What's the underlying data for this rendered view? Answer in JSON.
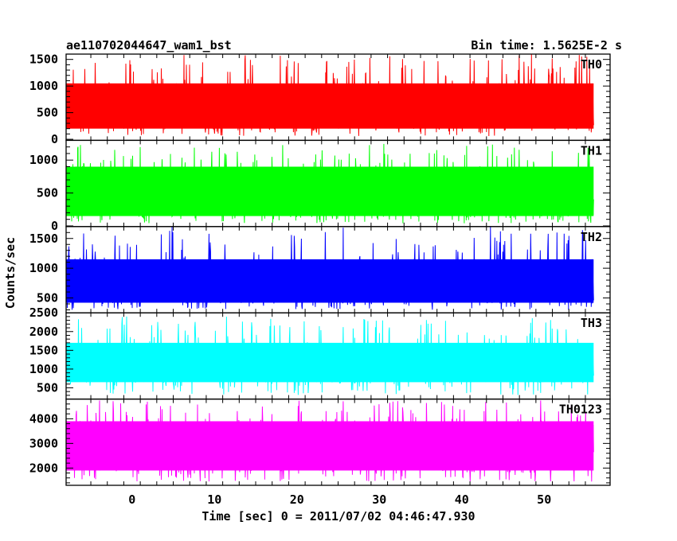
{
  "header": {
    "left_title": "ae110702044647_wam1_bst",
    "right_title": "Bin time: 1.5625E-2 s"
  },
  "chart_data": {
    "type": "line",
    "title": "ae110702044647_wam1_bst",
    "subtitle": "Bin time: 1.5625E-2 s",
    "xlabel": "Time [sec] 0 = 2011/07/02 04:46:47.930",
    "ylabel": "Counts/sec",
    "xlim": [
      -8,
      58
    ],
    "x_ticks": [
      0,
      10,
      20,
      30,
      40,
      50
    ],
    "x_data_range": [
      -8,
      56
    ],
    "grid": false,
    "legend": "panel labels top-right",
    "panels": [
      {
        "name": "TH0",
        "color": "#ff0000",
        "ylim": [
          -20,
          1600
        ],
        "y_ticks": [
          0,
          500,
          1000,
          1500
        ],
        "base": 60,
        "low": 200,
        "high": 1050,
        "peak": 1600
      },
      {
        "name": "TH1",
        "color": "#00ff00",
        "ylim": [
          -10,
          1300
        ],
        "y_ticks": [
          0,
          500,
          1000
        ],
        "base": 40,
        "low": 150,
        "high": 900,
        "peak": 1250
      },
      {
        "name": "TH2",
        "color": "#0000ff",
        "ylim": [
          250,
          1700
        ],
        "y_ticks": [
          500,
          1000,
          1500
        ],
        "base": 300,
        "low": 420,
        "high": 1150,
        "peak": 1700
      },
      {
        "name": "TH3",
        "color": "#00ffff",
        "ylim": [
          200,
          2500
        ],
        "y_ticks": [
          500,
          1000,
          1500,
          2000,
          2500
        ],
        "base": 300,
        "low": 650,
        "high": 1700,
        "peak": 2400
      },
      {
        "name": "TH0123",
        "color": "#ff00ff",
        "ylim": [
          1300,
          4800
        ],
        "y_ticks": [
          2000,
          3000,
          4000
        ],
        "base": 1450,
        "low": 1900,
        "high": 3900,
        "peak": 4750
      }
    ]
  }
}
